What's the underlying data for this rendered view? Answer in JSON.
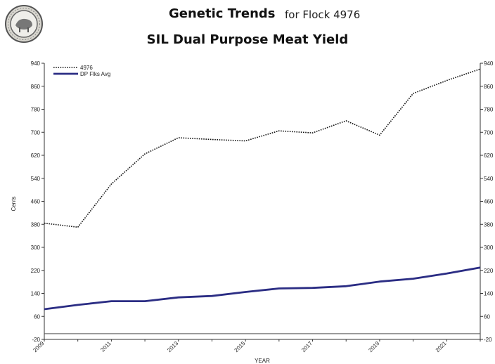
{
  "header": {
    "title": "Genetic Trends",
    "flock_label": "for Flock 4976",
    "subtitle": "SIL Dual Purpose Meat Yield",
    "logo_icon": "sil-seal-logo-icon"
  },
  "chart_data": {
    "type": "line",
    "xlabel": "YEAR",
    "ylabel": "Cents",
    "ylim": [
      -20,
      940
    ],
    "yticks": [
      -20,
      60,
      140,
      220,
      300,
      380,
      460,
      540,
      620,
      700,
      780,
      860,
      940
    ],
    "xlim": [
      2009,
      2022
    ],
    "xtick_labels": [
      "2009",
      "2011",
      "2013",
      "2015",
      "2017",
      "2019",
      "2021"
    ],
    "xtick_values": [
      2009,
      2011,
      2013,
      2015,
      2017,
      2019,
      2021
    ],
    "x": [
      2009,
      2010,
      2011,
      2012,
      2013,
      2014,
      2015,
      2016,
      2017,
      2018,
      2019,
      2020,
      2021,
      2022
    ],
    "series": [
      {
        "name": "4976",
        "style": "dotted",
        "color": "#111111",
        "values": [
          384,
          370,
          520,
          625,
          681,
          675,
          670,
          705,
          698,
          740,
          690,
          835,
          880,
          920
        ]
      },
      {
        "name": "DP Flks Avg",
        "style": "solid",
        "color": "#2b2d84",
        "values": [
          85,
          100,
          113,
          113,
          126,
          131,
          145,
          157,
          159,
          165,
          181,
          191,
          209,
          230
        ]
      }
    ],
    "baseline": 0,
    "grid": false,
    "legend": "top-left",
    "right_axis_mirror": true
  }
}
